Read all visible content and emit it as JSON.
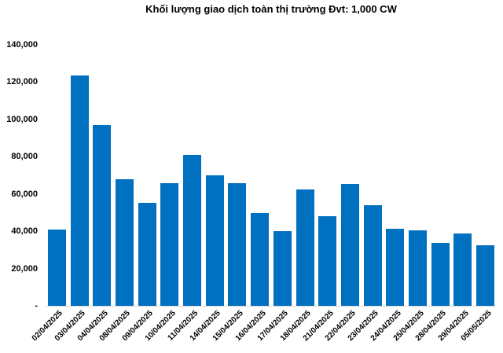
{
  "chart_data": {
    "type": "bar",
    "title": "Khối lượng giao dịch toàn thị trường Đvt: 1,000 CW",
    "categories": [
      "02/04/2025",
      "03/04/2025",
      "04/04/2025",
      "08/04/2025",
      "09/04/2025",
      "10/04/2025",
      "11/04/2025",
      "14/04/2025",
      "15/04/2025",
      "16/04/2025",
      "17/04/2025",
      "18/04/2025",
      "21/04/2025",
      "22/04/2025",
      "23/04/2025",
      "24/04/2025",
      "25/04/2025",
      "28/04/2025",
      "29/04/2025",
      "05/05/2025"
    ],
    "values": [
      41000,
      123500,
      96800,
      67800,
      55200,
      65600,
      80900,
      70100,
      65800,
      49700,
      40000,
      62400,
      48000,
      65300,
      54000,
      41500,
      40300,
      33800,
      38600,
      32400
    ],
    "xlabel": "",
    "ylabel": "",
    "ylim": [
      0,
      140000
    ],
    "ytick_step": 20000,
    "ytick_labels": [
      "-",
      "20,000",
      "40,000",
      "60,000",
      "80,000",
      "100,000",
      "120,000",
      "140,000"
    ],
    "grid": false,
    "legend": false,
    "bar_color": "#0070c0",
    "axis_line_color": "#d9d9d9",
    "text_color": "#000000"
  }
}
